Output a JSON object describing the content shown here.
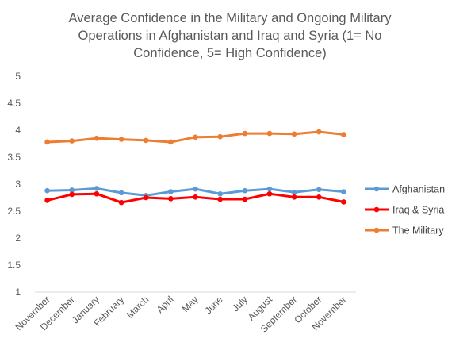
{
  "chart_data": {
    "type": "line",
    "title_lines": [
      "Average Confidence in the Military and Ongoing Military",
      "Operations in Afghanistan and Iraq and Syria (1= No",
      "Confidence, 5= High Confidence)"
    ],
    "xlabel": "",
    "ylabel": "",
    "ylim": [
      1,
      5
    ],
    "yticks": [
      "1",
      "1.5",
      "2",
      "2.5",
      "3",
      "3.5",
      "4",
      "4.5",
      "5"
    ],
    "grid": false,
    "legend_position": "right",
    "categories": [
      "November",
      "December",
      "January",
      "February",
      "March",
      "April",
      "May",
      "June",
      "July",
      "August",
      "September",
      "October",
      "November"
    ],
    "series": [
      {
        "name": "Afghanistan",
        "color": "#5B9BD5",
        "values": [
          2.88,
          2.89,
          2.92,
          2.84,
          2.79,
          2.86,
          2.91,
          2.82,
          2.88,
          2.91,
          2.85,
          2.9,
          2.86
        ]
      },
      {
        "name": "Iraq & Syria",
        "color": "#FF0000",
        "values": [
          2.7,
          2.81,
          2.82,
          2.66,
          2.75,
          2.73,
          2.76,
          2.72,
          2.72,
          2.82,
          2.76,
          2.76,
          2.67
        ]
      },
      {
        "name": "The Military",
        "color": "#ED7D31",
        "values": [
          3.78,
          3.8,
          3.85,
          3.83,
          3.81,
          3.78,
          3.87,
          3.88,
          3.94,
          3.94,
          3.93,
          3.97,
          3.92
        ]
      }
    ]
  }
}
